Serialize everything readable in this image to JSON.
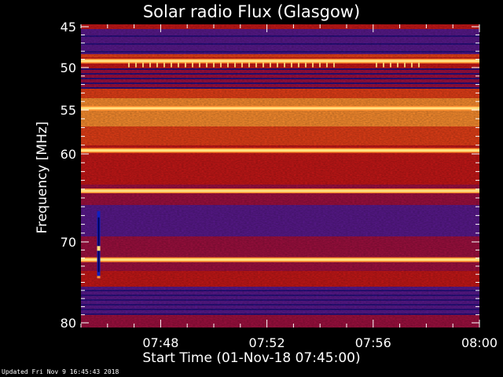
{
  "chart_data": {
    "type": "heatmap",
    "title": "Solar radio Flux (Glasgow)",
    "xlabel": "Start Time (01-Nov-18 07:45:00)",
    "ylabel": "Frequency [MHz]",
    "x_range": [
      "07:45:00",
      "08:00:00"
    ],
    "x_ticks": [
      "07:48",
      "07:52",
      "07:56",
      "08:00"
    ],
    "ylim": [
      45,
      80
    ],
    "y_inverted": true,
    "y_ticks": [
      45,
      50,
      55,
      60,
      70,
      80
    ],
    "colormap": [
      "#2a1080",
      "#5a1a8e",
      "#a01040",
      "#c81818",
      "#e84018",
      "#ff9030",
      "#ffe080"
    ],
    "bright_bands_mhz": [
      49.2,
      54.8,
      59.6,
      64.2,
      72.2
    ],
    "burst": {
      "time": "07:45:40",
      "freq_start": 66.5,
      "freq_end": 74.5
    }
  },
  "footer": {
    "updated": "Updated Fri Nov  9 16:45:43 2018"
  }
}
